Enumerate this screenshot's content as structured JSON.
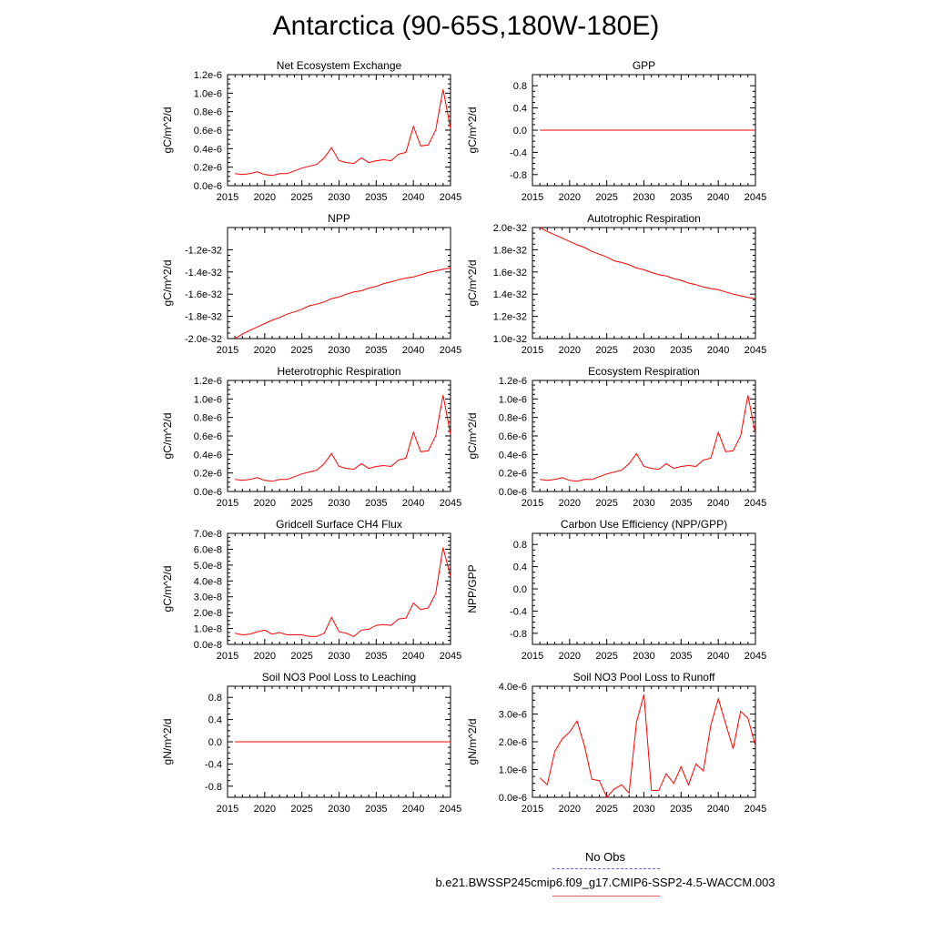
{
  "title": "Antarctica (90-65S,180W-180E)",
  "legend": {
    "obs_label": "No Obs",
    "case_label": "b.e21.BWSSP245cmip6.f09_g17.CMIP6-SSP2-4.5-WACCM.003",
    "obs_color": "#6b6bd6",
    "case_color": "#e06060"
  },
  "line_color": "#ff0000",
  "chart_data": [
    {
      "type": "line",
      "title": "Net Ecosystem Exchange",
      "ylabel": "gC/m^2/d",
      "xlabel": "",
      "xlim": [
        2015,
        2045
      ],
      "ylim": [
        0,
        1.2
      ],
      "xticks": [
        2015,
        2020,
        2025,
        2030,
        2035,
        2040,
        2045
      ],
      "xtick_labels": [
        "2015",
        "2020",
        "2025",
        "2030",
        "2035",
        "2040",
        "2045"
      ],
      "yticks": [
        0,
        0.2,
        0.4,
        0.6,
        0.8,
        1.0,
        1.2
      ],
      "ytick_labels": [
        "0.0e-6",
        "0.2e-6",
        "0.4e-6",
        "0.6e-6",
        "0.8e-6",
        "1.0e-6",
        "1.2e-6"
      ],
      "x": [
        2016,
        2017,
        2018,
        2019,
        2020,
        2021,
        2022,
        2023,
        2024,
        2025,
        2026,
        2027,
        2028,
        2029,
        2030,
        2031,
        2032,
        2033,
        2034,
        2035,
        2036,
        2037,
        2038,
        2039,
        2040,
        2041,
        2042,
        2043,
        2044,
        2045
      ],
      "values": [
        0.13,
        0.12,
        0.13,
        0.15,
        0.12,
        0.11,
        0.13,
        0.13,
        0.16,
        0.19,
        0.21,
        0.23,
        0.3,
        0.41,
        0.27,
        0.25,
        0.24,
        0.3,
        0.25,
        0.27,
        0.28,
        0.27,
        0.34,
        0.36,
        0.64,
        0.43,
        0.44,
        0.6,
        1.04,
        0.62
      ]
    },
    {
      "type": "line",
      "title": "GPP",
      "ylabel": "gC/m^2/d",
      "xlabel": "",
      "xlim": [
        2015,
        2045
      ],
      "ylim": [
        -1,
        1
      ],
      "xticks": [
        2015,
        2020,
        2025,
        2030,
        2035,
        2040,
        2045
      ],
      "xtick_labels": [
        "2015",
        "2020",
        "2025",
        "2030",
        "2035",
        "2040",
        "2045"
      ],
      "yticks": [
        -0.8,
        -0.4,
        0,
        0.4,
        0.8
      ],
      "ytick_labels": [
        "-0.8",
        "-0.4",
        "0.0",
        "0.4",
        "0.8"
      ],
      "x": [
        2016,
        2045
      ],
      "values": [
        0,
        0
      ]
    },
    {
      "type": "line",
      "title": "NPP",
      "ylabel": "gC/m^2/d",
      "xlabel": "",
      "xlim": [
        2015,
        2045
      ],
      "ylim": [
        -2.0,
        -1.0
      ],
      "xticks": [
        2015,
        2020,
        2025,
        2030,
        2035,
        2040,
        2045
      ],
      "xtick_labels": [
        "2015",
        "2020",
        "2025",
        "2030",
        "2035",
        "2040",
        "2045"
      ],
      "yticks": [
        -2.0,
        -1.8,
        -1.6,
        -1.4,
        -1.2
      ],
      "ytick_labels": [
        "-2.0e-32",
        "-1.8e-32",
        "-1.6e-32",
        "-1.4e-32",
        "-1.2e-32"
      ],
      "x": [
        2016,
        2017,
        2018,
        2019,
        2020,
        2021,
        2022,
        2023,
        2024,
        2025,
        2026,
        2027,
        2028,
        2029,
        2030,
        2031,
        2032,
        2033,
        2034,
        2035,
        2036,
        2037,
        2038,
        2039,
        2040,
        2041,
        2042,
        2043,
        2044,
        2045
      ],
      "values": [
        -2.0,
        -1.96,
        -1.925,
        -1.895,
        -1.865,
        -1.835,
        -1.81,
        -1.78,
        -1.76,
        -1.735,
        -1.705,
        -1.69,
        -1.67,
        -1.64,
        -1.625,
        -1.6,
        -1.58,
        -1.57,
        -1.545,
        -1.53,
        -1.505,
        -1.49,
        -1.47,
        -1.455,
        -1.445,
        -1.425,
        -1.405,
        -1.39,
        -1.375,
        -1.365
      ]
    },
    {
      "type": "line",
      "title": "Autotrophic Respiration",
      "ylabel": "gC/m^2/d",
      "xlabel": "",
      "xlim": [
        2015,
        2045
      ],
      "ylim": [
        1.0,
        2.0
      ],
      "xticks": [
        2015,
        2020,
        2025,
        2030,
        2035,
        2040,
        2045
      ],
      "xtick_labels": [
        "2015",
        "2020",
        "2025",
        "2030",
        "2035",
        "2040",
        "2045"
      ],
      "yticks": [
        1.0,
        1.2,
        1.4,
        1.6,
        1.8,
        2.0
      ],
      "ytick_labels": [
        "1.0e-32",
        "1.2e-32",
        "1.4e-32",
        "1.6e-32",
        "1.8e-32",
        "2.0e-32"
      ],
      "x": [
        2016,
        2017,
        2018,
        2019,
        2020,
        2021,
        2022,
        2023,
        2024,
        2025,
        2026,
        2027,
        2028,
        2029,
        2030,
        2031,
        2032,
        2033,
        2034,
        2035,
        2036,
        2037,
        2038,
        2039,
        2040,
        2041,
        2042,
        2043,
        2044,
        2045
      ],
      "values": [
        2.0,
        1.965,
        1.935,
        1.905,
        1.875,
        1.845,
        1.82,
        1.785,
        1.76,
        1.735,
        1.7,
        1.685,
        1.665,
        1.635,
        1.62,
        1.595,
        1.575,
        1.565,
        1.54,
        1.525,
        1.5,
        1.485,
        1.465,
        1.45,
        1.44,
        1.42,
        1.4,
        1.385,
        1.37,
        1.36
      ]
    },
    {
      "type": "line",
      "title": "Heterotrophic Respiration",
      "ylabel": "gC/m^2/d",
      "xlabel": "",
      "xlim": [
        2015,
        2045
      ],
      "ylim": [
        0,
        1.2
      ],
      "xticks": [
        2015,
        2020,
        2025,
        2030,
        2035,
        2040,
        2045
      ],
      "xtick_labels": [
        "2015",
        "2020",
        "2025",
        "2030",
        "2035",
        "2040",
        "2045"
      ],
      "yticks": [
        0,
        0.2,
        0.4,
        0.6,
        0.8,
        1.0,
        1.2
      ],
      "ytick_labels": [
        "0.0e-6",
        "0.2e-6",
        "0.4e-6",
        "0.6e-6",
        "0.8e-6",
        "1.0e-6",
        "1.2e-6"
      ],
      "x": [
        2016,
        2017,
        2018,
        2019,
        2020,
        2021,
        2022,
        2023,
        2024,
        2025,
        2026,
        2027,
        2028,
        2029,
        2030,
        2031,
        2032,
        2033,
        2034,
        2035,
        2036,
        2037,
        2038,
        2039,
        2040,
        2041,
        2042,
        2043,
        2044,
        2045
      ],
      "values": [
        0.13,
        0.12,
        0.13,
        0.15,
        0.12,
        0.11,
        0.13,
        0.13,
        0.16,
        0.19,
        0.21,
        0.23,
        0.3,
        0.41,
        0.27,
        0.25,
        0.24,
        0.3,
        0.25,
        0.27,
        0.28,
        0.27,
        0.34,
        0.36,
        0.64,
        0.43,
        0.44,
        0.6,
        1.04,
        0.62
      ]
    },
    {
      "type": "line",
      "title": "Ecosystem Respiration",
      "ylabel": "gC/m^2/d",
      "xlabel": "",
      "xlim": [
        2015,
        2045
      ],
      "ylim": [
        0,
        1.2
      ],
      "xticks": [
        2015,
        2020,
        2025,
        2030,
        2035,
        2040,
        2045
      ],
      "xtick_labels": [
        "2015",
        "2020",
        "2025",
        "2030",
        "2035",
        "2040",
        "2045"
      ],
      "yticks": [
        0,
        0.2,
        0.4,
        0.6,
        0.8,
        1.0,
        1.2
      ],
      "ytick_labels": [
        "0.0e-6",
        "0.2e-6",
        "0.4e-6",
        "0.6e-6",
        "0.8e-6",
        "1.0e-6",
        "1.2e-6"
      ],
      "x": [
        2016,
        2017,
        2018,
        2019,
        2020,
        2021,
        2022,
        2023,
        2024,
        2025,
        2026,
        2027,
        2028,
        2029,
        2030,
        2031,
        2032,
        2033,
        2034,
        2035,
        2036,
        2037,
        2038,
        2039,
        2040,
        2041,
        2042,
        2043,
        2044,
        2045
      ],
      "values": [
        0.13,
        0.12,
        0.13,
        0.15,
        0.12,
        0.11,
        0.13,
        0.13,
        0.16,
        0.19,
        0.21,
        0.23,
        0.3,
        0.41,
        0.27,
        0.25,
        0.24,
        0.3,
        0.25,
        0.27,
        0.28,
        0.27,
        0.34,
        0.36,
        0.64,
        0.43,
        0.44,
        0.6,
        1.04,
        0.62
      ]
    },
    {
      "type": "line",
      "title": "Gridcell Surface CH4 Flux",
      "ylabel": "gC/m^2/d",
      "xlabel": "",
      "xlim": [
        2015,
        2045
      ],
      "ylim": [
        0,
        7.0
      ],
      "xticks": [
        2015,
        2020,
        2025,
        2030,
        2035,
        2040,
        2045
      ],
      "xtick_labels": [
        "2015",
        "2020",
        "2025",
        "2030",
        "2035",
        "2040",
        "2045"
      ],
      "yticks": [
        0,
        1,
        2,
        3,
        4,
        5,
        6,
        7
      ],
      "ytick_labels": [
        "0.0e-8",
        "1.0e-8",
        "2.0e-8",
        "3.0e-8",
        "4.0e-8",
        "5.0e-8",
        "6.0e-8",
        "7.0e-8"
      ],
      "x": [
        2016,
        2017,
        2018,
        2019,
        2020,
        2021,
        2022,
        2023,
        2024,
        2025,
        2026,
        2027,
        2028,
        2029,
        2030,
        2031,
        2032,
        2033,
        2034,
        2035,
        2036,
        2037,
        2038,
        2039,
        2040,
        2041,
        2042,
        2043,
        2044,
        2045
      ],
      "values": [
        0.7,
        0.6,
        0.65,
        0.8,
        0.9,
        0.65,
        0.75,
        0.6,
        0.6,
        0.6,
        0.5,
        0.5,
        0.7,
        1.7,
        0.8,
        0.7,
        0.5,
        0.9,
        0.95,
        1.2,
        1.25,
        1.2,
        1.6,
        1.65,
        2.6,
        2.2,
        2.3,
        3.2,
        6.1,
        4.3
      ]
    },
    {
      "type": "line",
      "title": "Carbon Use Efficiency (NPP/GPP)",
      "ylabel": "NPP/GPP",
      "xlabel": "",
      "xlim": [
        2015,
        2045
      ],
      "ylim": [
        -1,
        1
      ],
      "xticks": [
        2015,
        2020,
        2025,
        2030,
        2035,
        2040,
        2045
      ],
      "xtick_labels": [
        "2015",
        "2020",
        "2025",
        "2030",
        "2035",
        "2040",
        "2045"
      ],
      "yticks": [
        -0.8,
        -0.4,
        0,
        0.4,
        0.8
      ],
      "ytick_labels": [
        "-0.8",
        "-0.4",
        "0.0",
        "0.4",
        "0.8"
      ],
      "x": [],
      "values": []
    },
    {
      "type": "line",
      "title": "Soil NO3 Pool Loss to Leaching",
      "ylabel": "gN/m^2/d",
      "xlabel": "",
      "xlim": [
        2015,
        2045
      ],
      "ylim": [
        -1,
        1
      ],
      "xticks": [
        2015,
        2020,
        2025,
        2030,
        2035,
        2040,
        2045
      ],
      "xtick_labels": [
        "2015",
        "2020",
        "2025",
        "2030",
        "2035",
        "2040",
        "2045"
      ],
      "yticks": [
        -0.8,
        -0.4,
        0,
        0.4,
        0.8
      ],
      "ytick_labels": [
        "-0.8",
        "-0.4",
        "0.0",
        "0.4",
        "0.8"
      ],
      "x": [
        2016,
        2045
      ],
      "values": [
        0,
        0
      ]
    },
    {
      "type": "line",
      "title": "Soil NO3 Pool Loss to Runoff",
      "ylabel": "gN/m^2/d",
      "xlabel": "",
      "xlim": [
        2015,
        2045
      ],
      "ylim": [
        0,
        4.0
      ],
      "xticks": [
        2015,
        2020,
        2025,
        2030,
        2035,
        2040,
        2045
      ],
      "xtick_labels": [
        "2015",
        "2020",
        "2025",
        "2030",
        "2035",
        "2040",
        "2045"
      ],
      "yticks": [
        0,
        1,
        2,
        3,
        4
      ],
      "ytick_labels": [
        "0.0e-6",
        "1.0e-6",
        "2.0e-6",
        "3.0e-6",
        "4.0e-6"
      ],
      "x": [
        2016,
        2017,
        2018,
        2019,
        2020,
        2021,
        2022,
        2023,
        2024,
        2025,
        2026,
        2027,
        2028,
        2029,
        2030,
        2031,
        2032,
        2033,
        2034,
        2035,
        2036,
        2037,
        2038,
        2039,
        2040,
        2041,
        2042,
        2043,
        2044,
        2045
      ],
      "values": [
        0.7,
        0.45,
        1.65,
        2.1,
        2.35,
        2.75,
        1.85,
        0.65,
        0.6,
        0.0,
        0.3,
        0.45,
        0.15,
        2.7,
        3.7,
        0.25,
        0.25,
        0.85,
        0.5,
        1.1,
        0.45,
        1.2,
        0.95,
        2.6,
        3.55,
        2.65,
        1.75,
        3.1,
        2.85,
        1.85
      ]
    }
  ]
}
